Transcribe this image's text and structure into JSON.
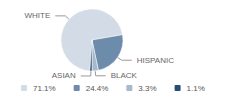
{
  "chart_data": {
    "type": "pie",
    "categories": [
      "WHITE",
      "HISPANIC",
      "BLACK",
      "ASIAN"
    ],
    "values": [
      71.1,
      24.4,
      3.3,
      1.1
    ],
    "value_labels": [
      "71.1%",
      "24.4%",
      "3.3%",
      "1.1%"
    ],
    "colors": [
      "#d3dbe6",
      "#6d8cab",
      "#a7b8cb",
      "#244e73"
    ],
    "legend": "bottom"
  }
}
